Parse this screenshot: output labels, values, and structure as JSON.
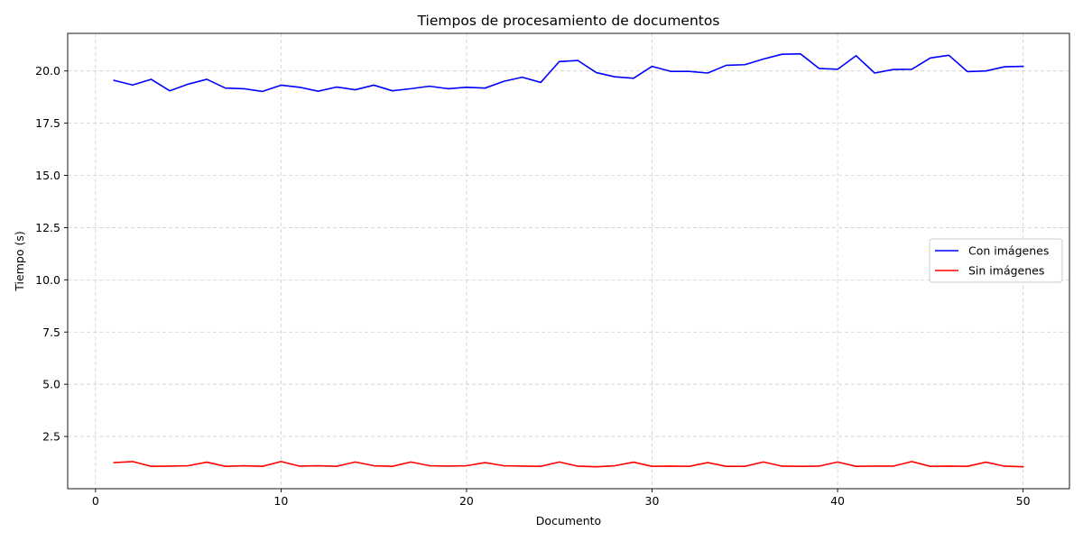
{
  "chart_data": {
    "type": "line",
    "title": "Tiempos de procesamiento de documentos",
    "xlabel": "Documento",
    "ylabel": "Tiempo (s)",
    "xlim": [
      -1.5,
      52.5
    ],
    "ylim": [
      0.0,
      21.8
    ],
    "xticks": [
      0,
      10,
      20,
      30,
      40,
      50
    ],
    "yticks": [
      2.5,
      5.0,
      7.5,
      10.0,
      12.5,
      15.0,
      17.5,
      20.0
    ],
    "xtick_labels": [
      "0",
      "10",
      "20",
      "30",
      "40",
      "50"
    ],
    "ytick_labels": [
      "2.5",
      "5.0",
      "7.5",
      "10.0",
      "12.5",
      "15.0",
      "17.5",
      "20.0"
    ],
    "grid": true,
    "legend_position": "center-right",
    "x": [
      1,
      2,
      3,
      4,
      5,
      6,
      7,
      8,
      9,
      10,
      11,
      12,
      13,
      14,
      15,
      16,
      17,
      18,
      19,
      20,
      21,
      22,
      23,
      24,
      25,
      26,
      27,
      28,
      29,
      30,
      31,
      32,
      33,
      34,
      35,
      36,
      37,
      38,
      39,
      40,
      41,
      42,
      43,
      44,
      45,
      46,
      47,
      48,
      49,
      50
    ],
    "series": [
      {
        "name": "Con imágenes",
        "color": "#0000ff",
        "values": [
          19.55,
          19.33,
          19.6,
          19.05,
          19.37,
          19.6,
          19.18,
          19.15,
          19.02,
          19.32,
          19.22,
          19.03,
          19.23,
          19.1,
          19.32,
          19.05,
          19.15,
          19.27,
          19.15,
          19.22,
          19.18,
          19.5,
          19.7,
          19.45,
          20.45,
          20.5,
          19.92,
          19.72,
          19.65,
          20.22,
          19.98,
          19.98,
          19.9,
          20.27,
          20.3,
          20.57,
          20.8,
          20.82,
          20.12,
          20.08,
          20.73,
          19.9,
          20.07,
          20.08,
          20.62,
          20.75,
          19.97,
          20.0,
          20.2,
          20.22
        ]
      },
      {
        "name": "Sin imágenes",
        "color": "#ff0000",
        "values": [
          1.25,
          1.3,
          1.07,
          1.08,
          1.1,
          1.27,
          1.07,
          1.1,
          1.07,
          1.3,
          1.08,
          1.1,
          1.07,
          1.28,
          1.1,
          1.07,
          1.28,
          1.1,
          1.08,
          1.1,
          1.25,
          1.1,
          1.08,
          1.07,
          1.28,
          1.08,
          1.05,
          1.1,
          1.27,
          1.07,
          1.08,
          1.07,
          1.25,
          1.07,
          1.07,
          1.28,
          1.08,
          1.07,
          1.08,
          1.28,
          1.07,
          1.08,
          1.08,
          1.3,
          1.07,
          1.08,
          1.07,
          1.27,
          1.08,
          1.05
        ]
      }
    ]
  }
}
